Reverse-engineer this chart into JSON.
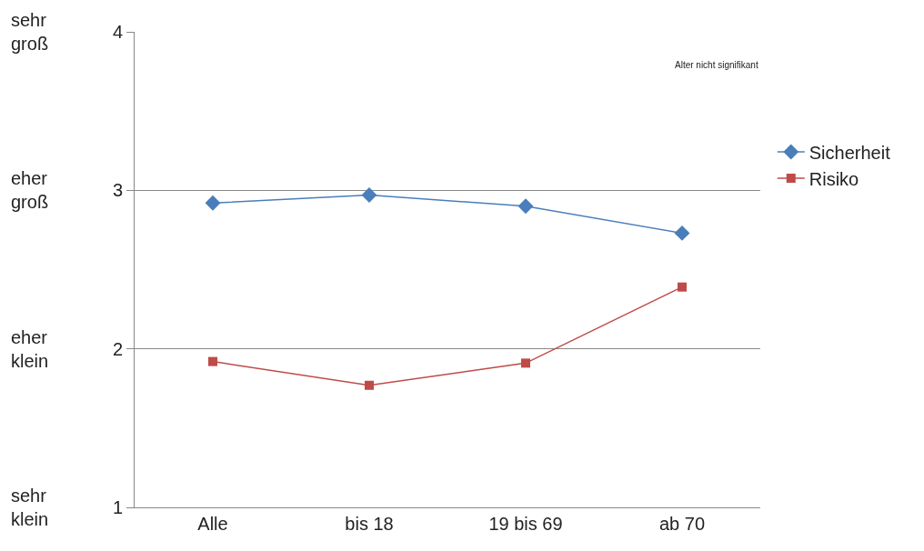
{
  "chart_data": {
    "type": "line",
    "categories": [
      "Alle",
      "bis 18",
      "19 bis 69",
      "ab 70"
    ],
    "series": [
      {
        "name": "Sicherheit",
        "color": "#4a7ebb",
        "marker": "diamond",
        "values": [
          2.92,
          2.97,
          2.9,
          2.73
        ]
      },
      {
        "name": "Risiko",
        "color": "#be4b48",
        "marker": "square",
        "values": [
          1.92,
          1.77,
          1.91,
          2.39
        ]
      }
    ],
    "ylim": [
      1,
      4
    ],
    "yticks": [
      1,
      2,
      3,
      4
    ],
    "grid": "y",
    "legend": "right",
    "line_style": "solid",
    "annotations": [
      "sehr groß",
      "eher groß",
      "eher klein",
      "sehr klein",
      "Alter nicht signifikant"
    ]
  }
}
